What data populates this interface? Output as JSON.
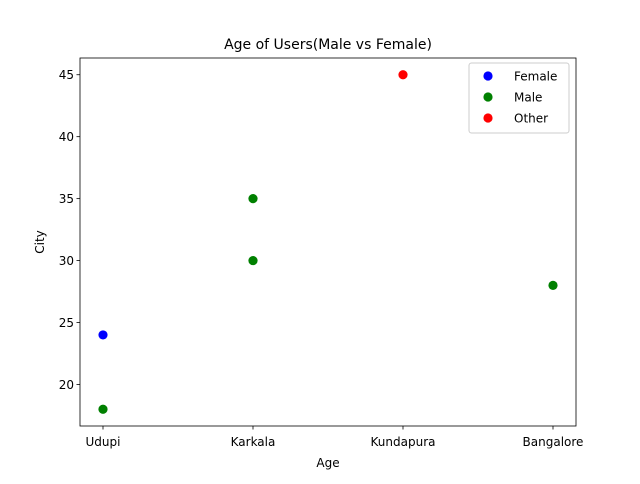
{
  "chart_data": {
    "type": "scatter",
    "title": "Age of Users(Male vs Female)",
    "xlabel": "Age",
    "ylabel": "City",
    "categories": [
      "Udupi",
      "Karkala",
      "Kundapura",
      "Bangalore"
    ],
    "ylim": [
      16.65,
      46.35
    ],
    "yticks": [
      20,
      25,
      30,
      35,
      40,
      45
    ],
    "grid": false,
    "legend_position": "top-right",
    "series": [
      {
        "name": "Female",
        "color": "#0000ff",
        "points": [
          {
            "x": "Udupi",
            "y": 24
          }
        ]
      },
      {
        "name": "Male",
        "color": "#008000",
        "points": [
          {
            "x": "Udupi",
            "y": 18
          },
          {
            "x": "Karkala",
            "y": 30
          },
          {
            "x": "Karkala",
            "y": 35
          },
          {
            "x": "Bangalore",
            "y": 28
          }
        ]
      },
      {
        "name": "Other",
        "color": "#ff0000",
        "points": [
          {
            "x": "Kundapura",
            "y": 45
          }
        ]
      }
    ]
  }
}
